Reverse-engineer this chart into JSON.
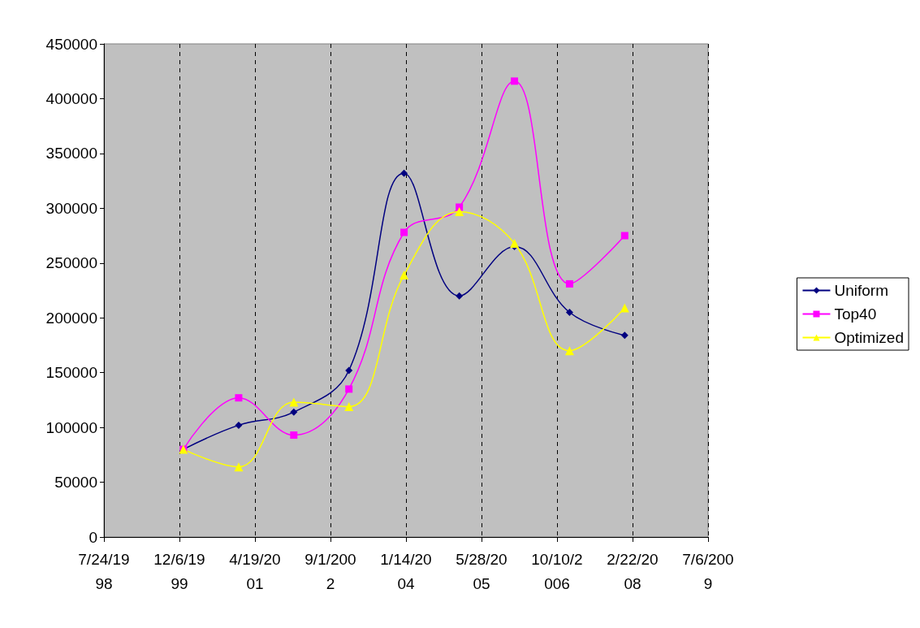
{
  "chart_data": {
    "type": "line",
    "x": [
      "2000-01-01",
      "2001-01-01",
      "2002-01-01",
      "2003-01-01",
      "2004-01-01",
      "2005-01-01",
      "2006-01-01",
      "2007-01-01",
      "2008-01-01"
    ],
    "series": [
      {
        "name": "Uniform",
        "color": "#000080",
        "marker": "diamond",
        "values": [
          80000,
          102000,
          114000,
          152000,
          332000,
          220000,
          265000,
          205000,
          184000
        ]
      },
      {
        "name": "Top40",
        "color": "#ff00ff",
        "marker": "square",
        "values": [
          80000,
          127000,
          93000,
          135000,
          278000,
          301000,
          416000,
          231000,
          275000
        ]
      },
      {
        "name": "Optimized",
        "color": "#ffff00",
        "marker": "triangle",
        "values": [
          80000,
          64000,
          123000,
          119000,
          239000,
          297000,
          268000,
          170000,
          209000
        ]
      }
    ],
    "xlim": [
      "1998-07-24",
      "2009-07-06"
    ],
    "xticks": [
      {
        "value": "1998-07-24",
        "label": "7/24/1998"
      },
      {
        "value": "1999-12-06",
        "label": "12/6/1999"
      },
      {
        "value": "2001-04-19",
        "label": "4/19/2001"
      },
      {
        "value": "2002-09-01",
        "label": "9/1/2002"
      },
      {
        "value": "2004-01-14",
        "label": "1/14/2004"
      },
      {
        "value": "2005-05-28",
        "label": "5/28/2005"
      },
      {
        "value": "2006-10-10",
        "label": "10/10/2006"
      },
      {
        "value": "2008-02-22",
        "label": "2/22/2008"
      },
      {
        "value": "2009-07-06",
        "label": "7/6/2009"
      }
    ],
    "ylim": [
      0,
      450000
    ],
    "yticks": [
      0,
      50000,
      100000,
      150000,
      200000,
      250000,
      300000,
      350000,
      400000,
      450000
    ],
    "grid": "x",
    "line_style": "solid",
    "legend": "right"
  }
}
